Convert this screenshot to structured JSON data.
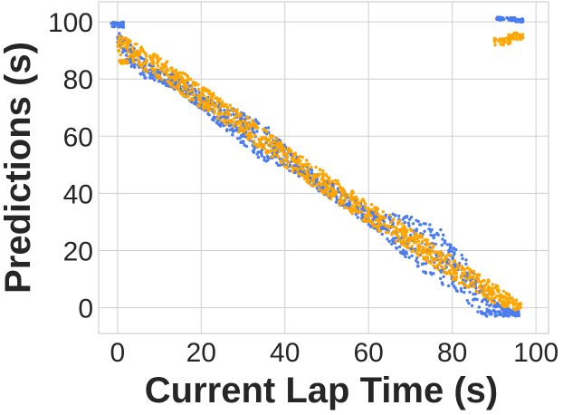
{
  "chart_data": {
    "type": "scatter",
    "title": "",
    "xlabel": "Current Lap Time (s)",
    "ylabel": "Predictions (s)",
    "xlim": [
      -4.5,
      103
    ],
    "ylim": [
      -9,
      107
    ],
    "xticks": [
      0,
      20,
      40,
      60,
      80,
      100
    ],
    "yticks": [
      0,
      20,
      40,
      60,
      80,
      100
    ],
    "grid": true,
    "legend": "none",
    "series": [
      {
        "color": "#4a7cf0",
        "band_points": [
          {
            "x": 0,
            "y": 94,
            "spread": 3
          },
          {
            "x": 5,
            "y": 85,
            "spread": 4
          },
          {
            "x": 10,
            "y": 81,
            "spread": 2
          },
          {
            "x": 15,
            "y": 78,
            "spread": 3
          },
          {
            "x": 20,
            "y": 72,
            "spread": 3
          },
          {
            "x": 25,
            "y": 67,
            "spread": 4
          },
          {
            "x": 30,
            "y": 63,
            "spread": 6
          },
          {
            "x": 35,
            "y": 58,
            "spread": 7
          },
          {
            "x": 40,
            "y": 53,
            "spread": 4
          },
          {
            "x": 45,
            "y": 47,
            "spread": 3
          },
          {
            "x": 50,
            "y": 42,
            "spread": 3
          },
          {
            "x": 55,
            "y": 37,
            "spread": 3
          },
          {
            "x": 60,
            "y": 32,
            "spread": 3
          },
          {
            "x": 65,
            "y": 28,
            "spread": 5
          },
          {
            "x": 70,
            "y": 24,
            "spread": 8
          },
          {
            "x": 75,
            "y": 20,
            "spread": 10
          },
          {
            "x": 80,
            "y": 15,
            "spread": 9
          },
          {
            "x": 84,
            "y": 8,
            "spread": 8
          },
          {
            "x": 88,
            "y": 1,
            "spread": 4
          },
          {
            "x": 92,
            "y": -1.5,
            "spread": 1.5
          },
          {
            "x": 96,
            "y": -2,
            "spread": 1
          }
        ],
        "clusters": [
          {
            "x": 0,
            "y": 99,
            "spread": 1.5
          },
          {
            "x": 91.5,
            "y": 101,
            "spread": 1
          },
          {
            "x": 94,
            "y": 101,
            "spread": 1
          },
          {
            "x": 96,
            "y": 100.5,
            "spread": 1
          }
        ]
      },
      {
        "color": "#ffa500",
        "band_points": [
          {
            "x": 0,
            "y": 92,
            "spread": 4
          },
          {
            "x": 10,
            "y": 84,
            "spread": 4
          },
          {
            "x": 20,
            "y": 74,
            "spread": 4
          },
          {
            "x": 30,
            "y": 64,
            "spread": 4
          },
          {
            "x": 40,
            "y": 53,
            "spread": 4
          },
          {
            "x": 50,
            "y": 43,
            "spread": 4
          },
          {
            "x": 60,
            "y": 33,
            "spread": 4
          },
          {
            "x": 70,
            "y": 24,
            "spread": 4
          },
          {
            "x": 80,
            "y": 14,
            "spread": 4
          },
          {
            "x": 90,
            "y": 5,
            "spread": 3.5
          },
          {
            "x": 96.5,
            "y": 0,
            "spread": 1.5
          }
        ],
        "clusters": [
          {
            "x": 92,
            "y": 93,
            "spread": 2
          },
          {
            "x": 95,
            "y": 95,
            "spread": 2
          },
          {
            "x": 1.5,
            "y": 86,
            "spread": 1
          }
        ]
      }
    ]
  }
}
